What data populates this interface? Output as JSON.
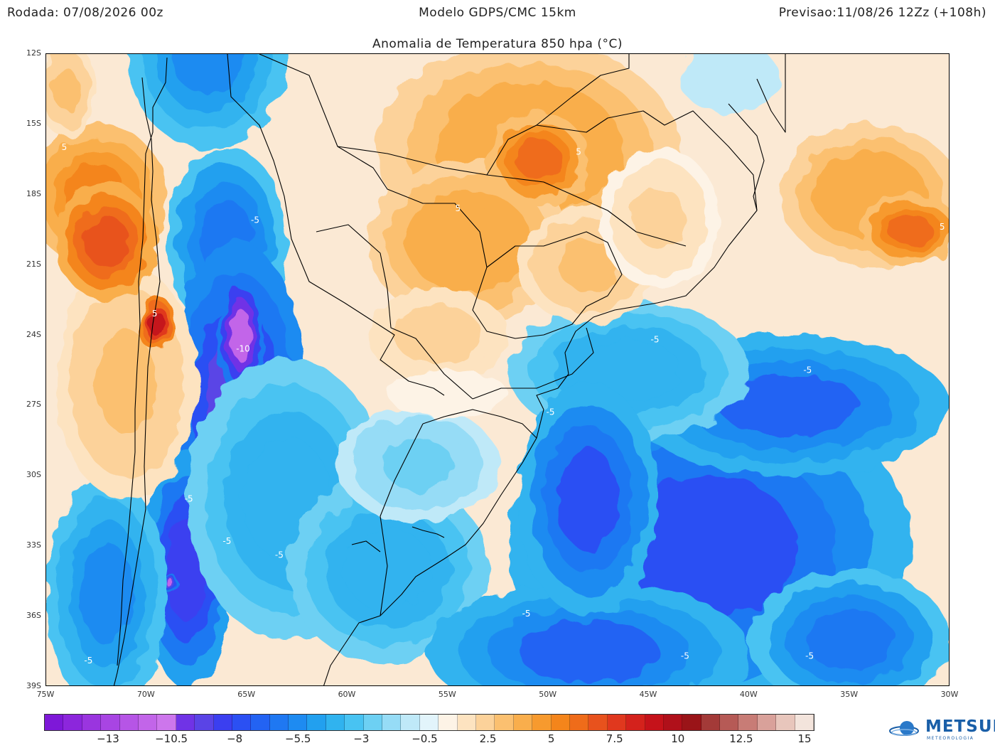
{
  "header": {
    "run": "Rodada: 07/08/2026 00z",
    "model": "Modelo GDPS/CMC 15km",
    "forecast": "Previsao:11/08/26 12Zz (+108h)"
  },
  "title": "Anomalia de Temperatura 850 hpa (°C)",
  "map": {
    "lat_labels": [
      "12S",
      "15S",
      "18S",
      "21S",
      "24S",
      "27S",
      "30S",
      "33S",
      "36S",
      "39S"
    ],
    "lon_labels": [
      "75W",
      "70W",
      "65W",
      "60W",
      "55W",
      "50W",
      "45W",
      "40W",
      "35W",
      "30W"
    ],
    "contour_labels": [
      {
        "text": "5",
        "lon": -74.1,
        "lat": -16.1
      },
      {
        "text": "5",
        "lon": -48.5,
        "lat": -16.3
      },
      {
        "text": "5",
        "lon": -54.5,
        "lat": -18.7
      },
      {
        "text": "5",
        "lon": -69.6,
        "lat": -23.2
      },
      {
        "text": "5",
        "lon": -30.4,
        "lat": -19.5
      },
      {
        "text": "-5",
        "lon": -64.6,
        "lat": -19.2
      },
      {
        "text": "-10",
        "lon": -65.2,
        "lat": -24.7
      },
      {
        "text": "-5",
        "lon": -44.7,
        "lat": -24.3
      },
      {
        "text": "-5",
        "lon": -37.1,
        "lat": -25.6
      },
      {
        "text": "-5",
        "lon": -49.9,
        "lat": -27.4
      },
      {
        "text": "-5",
        "lon": -67.9,
        "lat": -31.1
      },
      {
        "text": "-5",
        "lon": -66.0,
        "lat": -32.9
      },
      {
        "text": "-5",
        "lon": -63.4,
        "lat": -33.5
      },
      {
        "text": "-5",
        "lon": -51.1,
        "lat": -36.0
      },
      {
        "text": "-5",
        "lon": -43.2,
        "lat": -37.8
      },
      {
        "text": "-5",
        "lon": -37.0,
        "lat": -37.8
      },
      {
        "text": "-5",
        "lon": -72.9,
        "lat": -38.0
      }
    ],
    "anomaly_blobs": [
      {
        "lon": -67,
        "lat": -12,
        "rx": 4,
        "ry": 4,
        "v": -5
      },
      {
        "lon": -66,
        "lat": -20,
        "rx": 3,
        "ry": 4,
        "v": -6
      },
      {
        "lon": -65.5,
        "lat": -27,
        "rx": 3.5,
        "ry": 7,
        "v": -9
      },
      {
        "lon": -65.3,
        "lat": -24,
        "rx": 1.2,
        "ry": 2.5,
        "v": -11.5
      },
      {
        "lon": -67,
        "lat": -30.3,
        "rx": 0.8,
        "ry": 0.9,
        "v": -11.5
      },
      {
        "lon": -68,
        "lat": -34,
        "rx": 2.3,
        "ry": 5,
        "v": -8.5
      },
      {
        "lon": -68.8,
        "lat": -34.6,
        "rx": 0.4,
        "ry": 0.4,
        "v": -11
      },
      {
        "lon": -64.9,
        "lat": -31.3,
        "rx": 1.2,
        "ry": 2,
        "v": -8.5
      },
      {
        "lon": -63,
        "lat": -31,
        "rx": 5,
        "ry": 6,
        "v": -4
      },
      {
        "lon": -58,
        "lat": -34,
        "rx": 5,
        "ry": 4,
        "v": -4
      },
      {
        "lon": -56.5,
        "lat": -29.5,
        "rx": 4,
        "ry": 2.5,
        "v": -2
      },
      {
        "lon": -42,
        "lat": -33,
        "rx": 10,
        "ry": 7,
        "v": -7.5
      },
      {
        "lon": -38,
        "lat": -27,
        "rx": 8,
        "ry": 3,
        "v": -6.5
      },
      {
        "lon": -46,
        "lat": -25.5,
        "rx": 6,
        "ry": 3,
        "v": -4
      },
      {
        "lon": -48,
        "lat": -37.5,
        "rx": 8,
        "ry": 3,
        "v": -6.5
      },
      {
        "lon": -48,
        "lat": -31,
        "rx": 3.5,
        "ry": 5,
        "v": -7.5
      },
      {
        "lon": -35,
        "lat": -37,
        "rx": 5,
        "ry": 3,
        "v": -6
      },
      {
        "lon": -72,
        "lat": -35,
        "rx": 3,
        "ry": 5,
        "v": -5
      },
      {
        "lon": -71,
        "lat": -26,
        "rx": 3.5,
        "ry": 5,
        "v": 3
      },
      {
        "lon": -72.5,
        "lat": -18,
        "rx": 3.5,
        "ry": 3,
        "v": 5
      },
      {
        "lon": -72,
        "lat": -20,
        "rx": 2.5,
        "ry": 2.5,
        "v": 7
      },
      {
        "lon": -69.5,
        "lat": -23.5,
        "rx": 0.9,
        "ry": 1.2,
        "v": 9
      },
      {
        "lon": -74,
        "lat": -13.5,
        "rx": 1.5,
        "ry": 2,
        "v": 3
      },
      {
        "lon": -51,
        "lat": -16,
        "rx": 7.5,
        "ry": 4.5,
        "v": 4
      },
      {
        "lon": -54,
        "lat": -20,
        "rx": 5,
        "ry": 3.5,
        "v": 4
      },
      {
        "lon": -48,
        "lat": -21,
        "rx": 3.5,
        "ry": 2.5,
        "v": 3
      },
      {
        "lon": -50.5,
        "lat": -16.5,
        "rx": 2.5,
        "ry": 2,
        "v": 6
      },
      {
        "lon": -55.5,
        "lat": -24,
        "rx": 3.5,
        "ry": 2,
        "v": 2.5
      },
      {
        "lon": -55,
        "lat": -26.5,
        "rx": 3,
        "ry": 1,
        "v": 1
      },
      {
        "lon": -44.5,
        "lat": -19,
        "rx": 3,
        "ry": 3,
        "v": 2
      },
      {
        "lon": -34,
        "lat": -18,
        "rx": 4.5,
        "ry": 3,
        "v": 4
      },
      {
        "lon": -32,
        "lat": -19.5,
        "rx": 2.5,
        "ry": 1.5,
        "v": 6
      },
      {
        "lon": -41,
        "lat": -13,
        "rx": 2.5,
        "ry": 1.5,
        "v": -1
      }
    ],
    "colors": {
      "land_line": "#000000",
      "contour_line": "#ffffff",
      "background_field": "#fbe9d4"
    }
  },
  "colorbar": {
    "colors": [
      "#7e18d8",
      "#8c26dc",
      "#9a35df",
      "#a845e3",
      "#b655e6",
      "#c265e9",
      "#cd76ec",
      "#7033e6",
      "#5a44e6",
      "#3b3ff0",
      "#2b50f3",
      "#2363f3",
      "#1f78f2",
      "#1e8bf1",
      "#22a0ef",
      "#30b3ef",
      "#48c3f2",
      "#6dd0f3",
      "#96dcf6",
      "#bfe9f8",
      "#e2f4fb",
      "#fdf3e6",
      "#fde3c0",
      "#fcd29a",
      "#fbc070",
      "#f9ae4c",
      "#f79a2e",
      "#f4851b",
      "#ef6c1a",
      "#e8521d",
      "#e0381e",
      "#d4221c",
      "#c5121a",
      "#b0101a",
      "#9a1418",
      "#a33a38",
      "#b65a56",
      "#c87c76",
      "#d9a19a",
      "#e8c6bc",
      "#f3e4dc"
    ],
    "labels": [
      "−13",
      "−10.5",
      "−8",
      "−5.5",
      "−3",
      "−0.5",
      "2.5",
      "5",
      "7.5",
      "10",
      "12.5",
      "15"
    ]
  },
  "logo": {
    "text": "METSUL",
    "subtitle": "METEOROLOGIA"
  }
}
